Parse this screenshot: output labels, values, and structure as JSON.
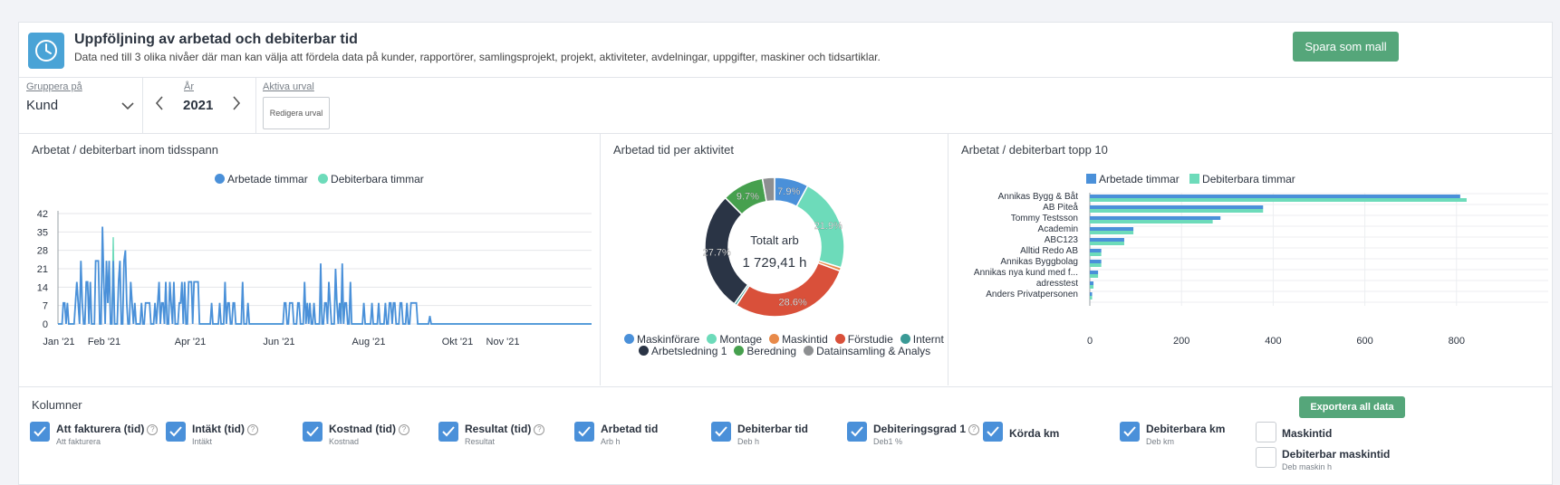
{
  "header": {
    "title": "Uppföljning av arbetad och debiterbar tid",
    "subtitle": "Data ned till 3 olika nivåer där man kan välja att fördela data på kunder, rapportörer, samlingsprojekt, projekt, aktiviteter, avdelningar, uppgifter, maskiner och tidsartiklar.",
    "save_button": "Spara som mall",
    "icon": "clock-icon"
  },
  "filters": {
    "group_label": "Gruppera på",
    "group_value": "Kund",
    "year_label": "År",
    "year_value": "2021",
    "active_label": "Aktiva urval",
    "edit_button": "Redigera urval"
  },
  "colors": {
    "arbetade": "#4a90d9",
    "debiterbara": "#6ddbba",
    "green": "#55a67a"
  },
  "chart_data": [
    {
      "type": "line",
      "title": "Arbetat / debiterbart inom tidsspann",
      "legend": [
        "Arbetade timmar",
        "Debiterbara timmar"
      ],
      "xticks": [
        "Jan '21",
        "Feb '21",
        "Apr '21",
        "Jun '21",
        "Aug '21",
        "Okt '21",
        "Nov '21"
      ],
      "yticks": [
        "42",
        "35",
        "28",
        "21",
        "14",
        "7",
        "0"
      ],
      "ylim": [
        0,
        42
      ],
      "grid": true,
      "series": [
        {
          "name": "Arbetade timmar",
          "values": [
            0,
            0,
            0,
            0,
            8,
            8,
            0,
            8,
            0,
            0,
            0,
            0,
            0,
            8,
            16,
            8,
            0,
            24,
            8,
            0,
            0,
            16,
            16,
            0,
            16,
            0,
            0,
            0,
            24,
            24,
            24,
            0,
            0,
            37,
            16,
            0,
            24,
            8,
            24,
            0,
            0,
            24,
            0,
            0,
            0,
            16,
            24,
            0,
            0,
            24,
            28,
            8,
            0,
            0,
            16,
            8,
            0,
            8,
            0,
            0,
            0,
            0,
            8,
            0,
            0,
            8,
            8,
            8,
            8,
            0,
            0,
            0,
            8,
            0,
            8,
            16,
            0,
            8,
            8,
            0,
            16,
            0,
            0,
            16,
            8,
            0,
            16,
            0,
            0,
            0,
            8,
            8,
            16,
            0,
            16,
            0,
            0,
            16,
            16,
            16,
            0,
            16,
            16,
            16,
            16,
            0,
            0,
            0,
            0,
            0,
            0,
            0,
            0,
            0,
            8,
            0,
            0,
            0,
            0,
            0,
            8,
            0,
            0,
            0,
            16,
            0,
            8,
            8,
            0,
            0,
            8,
            8,
            0,
            0,
            0,
            0,
            0,
            16,
            0,
            0,
            0,
            8,
            0,
            0,
            0,
            0,
            0,
            0,
            0,
            0,
            0,
            0,
            0,
            0,
            0,
            0,
            0,
            0,
            0,
            0,
            0,
            0,
            0,
            0,
            0,
            0,
            0,
            0,
            8,
            8,
            0,
            0,
            8,
            8,
            8,
            0,
            0,
            0,
            8,
            8,
            0,
            0,
            0,
            16,
            0,
            8,
            0,
            8,
            0,
            0,
            8,
            0,
            0,
            0,
            0,
            23,
            0,
            0,
            8,
            8,
            0,
            16,
            8,
            0,
            0,
            0,
            21,
            8,
            0,
            8,
            0,
            23,
            0,
            8,
            8,
            0,
            0,
            16,
            0,
            0,
            0,
            0,
            0,
            0,
            0,
            0,
            0,
            8,
            0,
            0,
            0,
            0,
            0,
            8,
            0,
            0,
            0,
            0,
            8,
            0,
            0,
            0,
            0,
            8,
            0,
            0,
            8,
            8,
            0,
            8,
            8,
            0,
            0,
            0,
            8,
            8,
            0,
            0,
            0,
            8,
            0,
            0,
            8,
            8,
            8,
            8,
            8,
            0,
            0,
            0,
            0,
            0,
            0,
            0,
            0,
            0,
            3,
            0,
            0,
            0,
            0,
            0,
            0,
            0,
            0,
            0,
            0,
            0,
            0,
            0,
            0,
            0,
            0,
            0,
            0,
            0,
            0,
            0,
            0,
            0,
            0,
            0,
            0,
            0,
            0,
            0,
            0,
            0,
            0,
            0,
            0,
            0,
            0,
            0,
            0,
            0,
            0,
            0,
            0,
            0,
            0,
            0,
            0,
            0,
            0,
            0,
            0,
            0,
            0,
            0,
            0,
            0,
            0,
            0,
            0,
            0,
            0,
            0,
            0,
            0,
            0,
            0,
            0,
            0,
            0,
            0,
            0,
            0,
            0,
            0,
            0,
            0,
            0,
            0,
            0,
            0,
            0,
            0,
            0,
            0,
            0,
            0,
            0,
            0,
            0,
            0,
            0,
            0,
            0,
            0,
            0,
            0,
            0,
            0,
            0,
            0,
            0,
            0,
            0,
            0,
            0,
            0,
            0,
            0,
            0,
            0,
            0,
            0,
            0,
            0,
            0,
            0,
            0,
            0,
            0,
            0,
            0
          ]
        },
        {
          "name": "Debiterbara timmar",
          "values": [
            0,
            0,
            0,
            0,
            8,
            8,
            0,
            8,
            0,
            0,
            0,
            0,
            0,
            8,
            16,
            8,
            0,
            24,
            8,
            0,
            0,
            16,
            16,
            0,
            16,
            0,
            0,
            0,
            24,
            24,
            24,
            0,
            0,
            32,
            16,
            0,
            24,
            8,
            24,
            0,
            0,
            33,
            0,
            0,
            0,
            16,
            24,
            0,
            0,
            24,
            28,
            8,
            0,
            0,
            16,
            8,
            0,
            8,
            0,
            0,
            0,
            0,
            8,
            0,
            0,
            8,
            8,
            8,
            8,
            0,
            0,
            0,
            8,
            0,
            8,
            16,
            0,
            8,
            8,
            0,
            16,
            0,
            0,
            16,
            8,
            0,
            16,
            0,
            0,
            0,
            8,
            8,
            16,
            0,
            16,
            0,
            0,
            16,
            16,
            16,
            0,
            16,
            16,
            16,
            16,
            0,
            0,
            0,
            0,
            0,
            0,
            0,
            0,
            0,
            8,
            0,
            0,
            0,
            0,
            0,
            8,
            0,
            0,
            0,
            16,
            0,
            8,
            8,
            0,
            0,
            8,
            8,
            0,
            0,
            0,
            0,
            0,
            16,
            0,
            0,
            0,
            8,
            0,
            0,
            0,
            0,
            0,
            0,
            0,
            0,
            0,
            0,
            0,
            0,
            0,
            0,
            0,
            0,
            0,
            0,
            0,
            0,
            0,
            0,
            0,
            0,
            0,
            0,
            8,
            8,
            0,
            0,
            8,
            8,
            8,
            0,
            0,
            0,
            8,
            8,
            0,
            0,
            0,
            16,
            0,
            8,
            0,
            8,
            0,
            0,
            8,
            0,
            0,
            0,
            0,
            13,
            0,
            0,
            8,
            8,
            0,
            16,
            8,
            0,
            0,
            0,
            13,
            8,
            0,
            8,
            0,
            13,
            0,
            8,
            8,
            0,
            0,
            16,
            0,
            0,
            0,
            0,
            0,
            0,
            0,
            0,
            0,
            8,
            0,
            0,
            0,
            0,
            0,
            8,
            0,
            0,
            0,
            0,
            8,
            0,
            0,
            0,
            0,
            8,
            0,
            0,
            8,
            8,
            0,
            8,
            8,
            0,
            0,
            0,
            8,
            8,
            0,
            0,
            0,
            8,
            0,
            0,
            8,
            8,
            8,
            8,
            8,
            0,
            0,
            0,
            0,
            0,
            0,
            0,
            0,
            0,
            3,
            0,
            0,
            0,
            0,
            0,
            0,
            0,
            0,
            0,
            0,
            0,
            0,
            0,
            0,
            0,
            0,
            0,
            0,
            0,
            0,
            0,
            0,
            0,
            0,
            0,
            0,
            0,
            0,
            0,
            0,
            0,
            0,
            0,
            0,
            0,
            0,
            0,
            0,
            0,
            0,
            0,
            0,
            0,
            0,
            0,
            0,
            0,
            0,
            0,
            0,
            0,
            0,
            0,
            0,
            0,
            0,
            0,
            0,
            0,
            0,
            0,
            0,
            0,
            0,
            0,
            0,
            0,
            0,
            0,
            0,
            0,
            0,
            0,
            0,
            0,
            0,
            0,
            0,
            0,
            0,
            0,
            0,
            0,
            0,
            0,
            0,
            0,
            0,
            0,
            0,
            0,
            0,
            0,
            0,
            0,
            0,
            0,
            0,
            0,
            0,
            0,
            0,
            0,
            0,
            0,
            0,
            0,
            0,
            0,
            0,
            0,
            0,
            0,
            0,
            0,
            0,
            0,
            0,
            0,
            0
          ]
        }
      ]
    },
    {
      "type": "pie",
      "title": "Arbetad tid per aktivitet",
      "center_label": "Totalt arb",
      "center_value": "1 729,41 h",
      "slices": [
        {
          "name": "Maskinförare",
          "value": 7.9,
          "label": "7.9%",
          "color": "#4a90d9"
        },
        {
          "name": "Montage",
          "value": 21.9,
          "label": "21.9%",
          "color": "#6ddbba"
        },
        {
          "name": "Maskintid",
          "value": 0.8,
          "label": "",
          "color": "#e88a4a"
        },
        {
          "name": "Förstudie",
          "value": 28.6,
          "label": "28.6%",
          "color": "#d9503a"
        },
        {
          "name": "Internt",
          "value": 0.6,
          "label": "",
          "color": "#3a9a96"
        },
        {
          "name": "Arbetsledning 1",
          "value": 27.7,
          "label": "27.7%",
          "color": "#2a3445"
        },
        {
          "name": "Beredning",
          "value": 9.7,
          "label": "9.7%",
          "color": "#46a04e"
        },
        {
          "name": "Datainsamling & Analys",
          "value": 2.8,
          "label": "",
          "color": "#8d8f91"
        }
      ]
    },
    {
      "type": "bar",
      "orientation": "horizontal",
      "title": "Arbetat / debiterbart topp 10",
      "legend": [
        "Arbetade timmar",
        "Debiterbara timmar"
      ],
      "categories": [
        "Annikas Bygg & Båt",
        "AB Piteå",
        "Tommy Testsson",
        "Academin",
        "ABC123",
        "Alltid Redo AB",
        "Annikas Byggbolag",
        "Annikas nya kund med f...",
        "adresstest",
        "Anders Privatpersonen"
      ],
      "series": [
        {
          "name": "Arbetade timmar",
          "values": [
            808,
            378,
            285,
            95,
            75,
            25,
            25,
            18,
            8,
            5
          ]
        },
        {
          "name": "Debiterbara timmar",
          "values": [
            822,
            378,
            268,
            95,
            75,
            25,
            25,
            18,
            8,
            5
          ]
        }
      ],
      "xticks": [
        "0",
        "200",
        "400",
        "600",
        "800"
      ],
      "xlim": [
        0,
        1000
      ],
      "grid": true
    }
  ],
  "columns": {
    "header": "Kolumner",
    "export_button": "Exportera all data",
    "items": [
      {
        "label": "Att fakturera (tid)",
        "sub": "Att fakturera",
        "checked": true,
        "help": "?"
      },
      {
        "label": "Intäkt (tid)",
        "sub": "Intäkt",
        "checked": true,
        "help": "?"
      },
      {
        "label": "Kostnad (tid)",
        "sub": "Kostnad",
        "checked": true,
        "help": "?"
      },
      {
        "label": "Resultat (tid)",
        "sub": "Resultat",
        "checked": true,
        "help": "?"
      },
      {
        "label": "Arbetad tid",
        "sub": "Arb h",
        "checked": true
      },
      {
        "label": "Debiterbar tid",
        "sub": "Deb h",
        "checked": true
      },
      {
        "label": "Debiteringsgrad 1",
        "sub": "Deb1 %",
        "checked": true,
        "help": "?"
      },
      {
        "label": "Körda km",
        "sub": "",
        "checked": true
      },
      {
        "label": "Debiterbara km",
        "sub": "Deb km",
        "checked": true
      },
      {
        "label": "Maskintid",
        "sub": "",
        "checked": false
      },
      {
        "label": "Debiterbar maskintid",
        "sub": "Deb maskin h",
        "checked": false
      }
    ]
  }
}
